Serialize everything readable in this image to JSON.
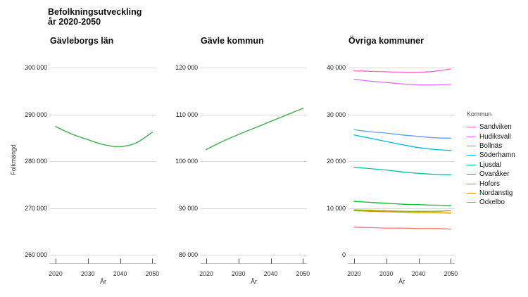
{
  "page": {
    "title_line1": "Befolkningsutveckling",
    "title_line2": "år 2020-2050"
  },
  "chart_data": [
    {
      "type": "line",
      "title": "Gävleborgs län",
      "xlabel": "År",
      "ylabel": "Folkmängd",
      "x": [
        2020,
        2025,
        2030,
        2035,
        2040,
        2045,
        2050
      ],
      "x_ticks": [
        2020,
        2030,
        2040,
        2050
      ],
      "y_ticks": [
        300000,
        290000,
        280000,
        270000,
        260000
      ],
      "ylim": [
        260000,
        300000
      ],
      "grid": true,
      "series": [
        {
          "name": "Gävleborgs län",
          "color": "#46b356",
          "values": [
            287400,
            285800,
            284600,
            283500,
            283100,
            283900,
            286200
          ]
        }
      ]
    },
    {
      "type": "line",
      "title": "Gävle kommun",
      "xlabel": "År",
      "ylabel": "Folkmängd",
      "x": [
        2020,
        2025,
        2030,
        2035,
        2040,
        2045,
        2050
      ],
      "x_ticks": [
        2020,
        2030,
        2040,
        2050
      ],
      "y_ticks": [
        120000,
        110000,
        100000,
        90000,
        80000
      ],
      "ylim": [
        80000,
        120000
      ],
      "grid": true,
      "series": [
        {
          "name": "Gävle",
          "color": "#46b356",
          "values": [
            102500,
            104200,
            105700,
            107100,
            108500,
            109900,
            111300
          ]
        }
      ]
    },
    {
      "type": "line",
      "title": "Övriga kommuner",
      "xlabel": "År",
      "ylabel": "Folkmängd",
      "legend_title": "Kommun",
      "legend_position": "right",
      "x": [
        2020,
        2025,
        2030,
        2035,
        2040,
        2045,
        2050
      ],
      "x_ticks": [
        2020,
        2030,
        2040,
        2050
      ],
      "y_ticks": [
        40000,
        30000,
        20000,
        10000,
        0
      ],
      "ylim": [
        0,
        40000
      ],
      "grid": true,
      "series": [
        {
          "name": "Sandviken",
          "color": "#FF61C3",
          "values": [
            39300,
            39200,
            39100,
            39000,
            39000,
            39200,
            39700
          ]
        },
        {
          "name": "Hudiksvall",
          "color": "#DB72FB",
          "values": [
            37500,
            37100,
            36800,
            36500,
            36300,
            36300,
            36400
          ]
        },
        {
          "name": "Bollnäs",
          "color": "#619CFF",
          "values": [
            26700,
            26300,
            26000,
            25600,
            25300,
            25000,
            24900
          ]
        },
        {
          "name": "Söderhamn",
          "color": "#00B9E3",
          "values": [
            25600,
            24900,
            24200,
            23500,
            22900,
            22500,
            22300
          ]
        },
        {
          "name": "Ljusdal",
          "color": "#00C19F",
          "values": [
            18700,
            18400,
            18100,
            17700,
            17400,
            17200,
            17100
          ]
        },
        {
          "name": "Ovanåker",
          "color": "#00BA38",
          "values": [
            11400,
            11200,
            11000,
            10800,
            10700,
            10600,
            10500
          ]
        },
        {
          "name": "Hofors",
          "color": "#93AA00",
          "values": [
            9600,
            9500,
            9400,
            9300,
            9300,
            9300,
            9400
          ]
        },
        {
          "name": "Nordanstig",
          "color": "#D39200",
          "values": [
            9400,
            9300,
            9200,
            9100,
            9000,
            9000,
            8900
          ]
        },
        {
          "name": "Ockelbo",
          "color": "#F8766D",
          "values": [
            5900,
            5800,
            5700,
            5700,
            5600,
            5600,
            5500
          ]
        }
      ]
    }
  ]
}
